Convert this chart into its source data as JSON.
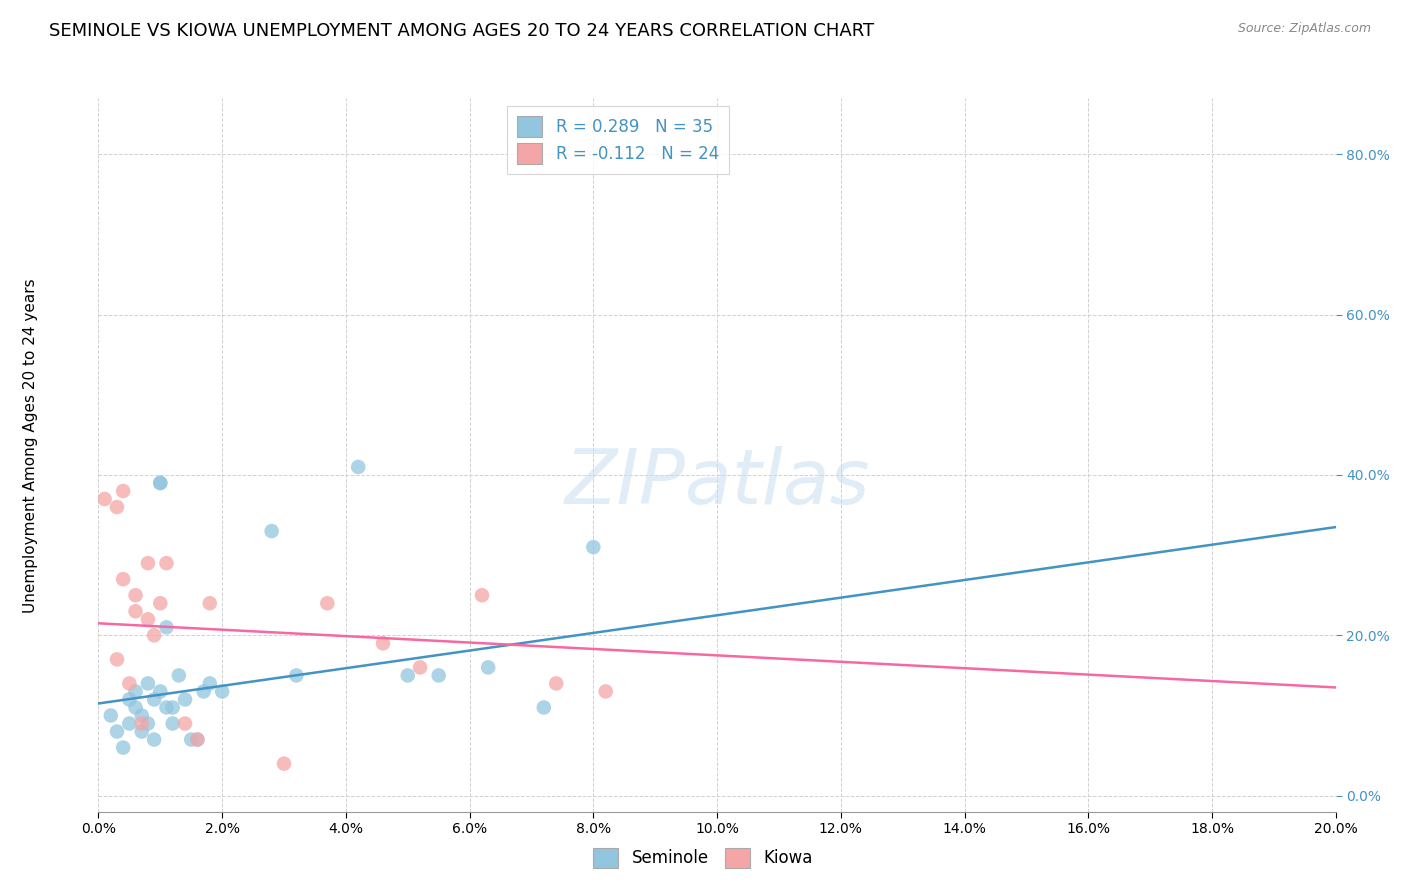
{
  "title": "SEMINOLE VS KIOWA UNEMPLOYMENT AMONG AGES 20 TO 24 YEARS CORRELATION CHART",
  "source": "Source: ZipAtlas.com",
  "ylabel": "Unemployment Among Ages 20 to 24 years",
  "xlim": [
    0.0,
    0.2
  ],
  "ylim": [
    -0.02,
    0.87
  ],
  "x_ticks": [
    0.0,
    0.02,
    0.04,
    0.06,
    0.08,
    0.1,
    0.12,
    0.14,
    0.16,
    0.18,
    0.2
  ],
  "y_ticks": [
    0.0,
    0.2,
    0.4,
    0.6,
    0.8
  ],
  "seminole_color": "#92c5de",
  "kiowa_color": "#f4a6a6",
  "seminole_line_color": "#4393c3",
  "kiowa_line_color": "#f768a1",
  "legend_R_seminole": "R = 0.289",
  "legend_N_seminole": "N = 35",
  "legend_R_kiowa": "R = -0.112",
  "legend_N_kiowa": "N = 24",
  "seminole_x": [
    0.002,
    0.003,
    0.004,
    0.005,
    0.005,
    0.006,
    0.006,
    0.007,
    0.007,
    0.008,
    0.008,
    0.009,
    0.009,
    0.01,
    0.01,
    0.01,
    0.011,
    0.011,
    0.012,
    0.012,
    0.013,
    0.014,
    0.015,
    0.016,
    0.017,
    0.018,
    0.02,
    0.028,
    0.032,
    0.042,
    0.05,
    0.055,
    0.063,
    0.072,
    0.08
  ],
  "seminole_y": [
    0.1,
    0.08,
    0.06,
    0.12,
    0.09,
    0.11,
    0.13,
    0.08,
    0.1,
    0.09,
    0.14,
    0.12,
    0.07,
    0.39,
    0.39,
    0.13,
    0.21,
    0.11,
    0.11,
    0.09,
    0.15,
    0.12,
    0.07,
    0.07,
    0.13,
    0.14,
    0.13,
    0.33,
    0.15,
    0.41,
    0.15,
    0.15,
    0.16,
    0.11,
    0.31
  ],
  "kiowa_x": [
    0.001,
    0.003,
    0.003,
    0.004,
    0.004,
    0.005,
    0.006,
    0.006,
    0.007,
    0.008,
    0.008,
    0.009,
    0.01,
    0.011,
    0.014,
    0.016,
    0.018,
    0.03,
    0.037,
    0.046,
    0.052,
    0.062,
    0.074,
    0.082
  ],
  "kiowa_y": [
    0.37,
    0.17,
    0.36,
    0.38,
    0.27,
    0.14,
    0.25,
    0.23,
    0.09,
    0.22,
    0.29,
    0.2,
    0.24,
    0.29,
    0.09,
    0.07,
    0.24,
    0.04,
    0.24,
    0.19,
    0.16,
    0.25,
    0.14,
    0.13
  ],
  "seminole_trend_x": [
    0.0,
    0.2
  ],
  "seminole_trend_y": [
    0.115,
    0.335
  ],
  "kiowa_trend_x": [
    0.0,
    0.2
  ],
  "kiowa_trend_y": [
    0.215,
    0.135
  ],
  "watermark": "ZIPatlas",
  "background_color": "#ffffff",
  "grid_color": "#cccccc",
  "title_fontsize": 13,
  "axis_label_fontsize": 11,
  "tick_fontsize": 10,
  "legend_fontsize": 12,
  "tick_color_right": "#4393c3",
  "tick_color_bottom": "#000000"
}
